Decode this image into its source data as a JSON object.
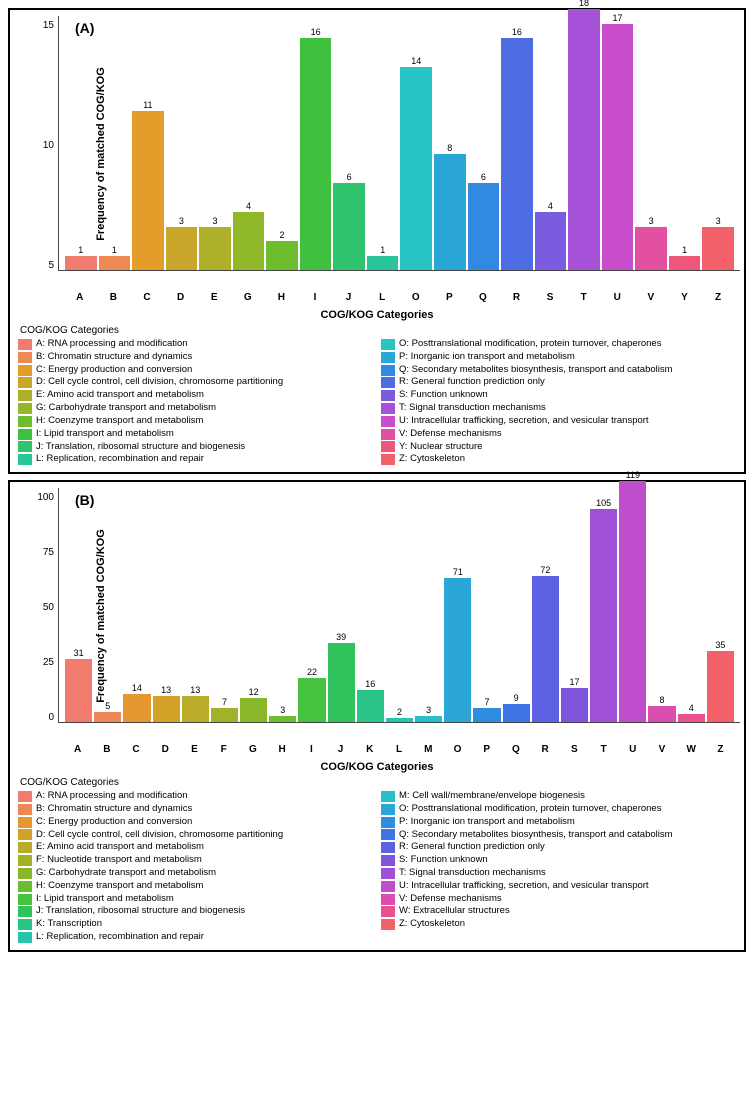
{
  "panelA": {
    "letter": "(A)",
    "type": "bar",
    "ylabel": "Frequency of matched COG/KOG",
    "xlabel": "COG/KOG Categories",
    "legend_title": "COG/KOG Categories",
    "ylim_max": 18,
    "yticks": [
      "15",
      "10",
      "5"
    ],
    "bar_width": 0.95,
    "background_color": "#ffffff",
    "label_fontsize": 11,
    "value_fontsize": 9,
    "categories": [
      "A",
      "B",
      "C",
      "D",
      "E",
      "G",
      "H",
      "I",
      "J",
      "L",
      "O",
      "P",
      "Q",
      "R",
      "S",
      "T",
      "U",
      "V",
      "Y",
      "Z"
    ],
    "values": [
      1,
      1,
      11,
      3,
      3,
      4,
      2,
      16,
      6,
      1,
      14,
      8,
      6,
      16,
      4,
      18,
      17,
      3,
      1,
      3
    ],
    "colors": [
      "#f07b6e",
      "#ed8952",
      "#e59d2a",
      "#c8a72a",
      "#aeb029",
      "#91b828",
      "#6fbd2f",
      "#3fc13f",
      "#2fc46b",
      "#2ac59a",
      "#28c4c3",
      "#2aa7d7",
      "#3189e2",
      "#4e6de5",
      "#7a5ce0",
      "#a552d8",
      "#ca4ecb",
      "#e2509f",
      "#ee567a",
      "#f2616a"
    ],
    "legend_left": [
      {
        "t": "A: RNA processing and modification",
        "c": "#f07b6e"
      },
      {
        "t": "B: Chromatin structure and dynamics",
        "c": "#ed8952"
      },
      {
        "t": "C: Energy production and conversion",
        "c": "#e59d2a"
      },
      {
        "t": "D: Cell cycle control, cell division, chromosome partitioning",
        "c": "#c8a72a"
      },
      {
        "t": "E: Amino acid transport and metabolism",
        "c": "#aeb029"
      },
      {
        "t": "G: Carbohydrate transport and metabolism",
        "c": "#91b828"
      },
      {
        "t": "H: Coenzyme transport and metabolism",
        "c": "#6fbd2f"
      },
      {
        "t": "I: Lipid transport and metabolism",
        "c": "#3fc13f"
      },
      {
        "t": "J: Translation, ribosomal structure and biogenesis",
        "c": "#2fc46b"
      },
      {
        "t": "L: Replication, recombination and repair",
        "c": "#2ac59a"
      }
    ],
    "legend_right": [
      {
        "t": "O: Posttranslational modification, protein turnover, chaperones",
        "c": "#28c4c3"
      },
      {
        "t": "P: Inorganic ion transport and metabolism",
        "c": "#2aa7d7"
      },
      {
        "t": "Q: Secondary metabolites biosynthesis, transport and catabolism",
        "c": "#3189e2"
      },
      {
        "t": "R: General function prediction only",
        "c": "#4e6de5"
      },
      {
        "t": "S: Function unknown",
        "c": "#7a5ce0"
      },
      {
        "t": "T: Signal transduction mechanisms",
        "c": "#a552d8"
      },
      {
        "t": "U: Intracellular trafficking, secretion, and vesicular transport",
        "c": "#ca4ecb"
      },
      {
        "t": "V: Defense mechanisms",
        "c": "#e2509f"
      },
      {
        "t": "Y: Nuclear structure",
        "c": "#ee567a"
      },
      {
        "t": "Z: Cytoskeleton",
        "c": "#f2616a"
      }
    ]
  },
  "panelB": {
    "letter": "(B)",
    "type": "bar",
    "ylabel": "Frequency of matched COG/KOG",
    "xlabel": "COG/KOG Categories",
    "legend_title": "COG/KOG Categories",
    "ylim_max": 119,
    "yticks": [
      "100",
      "75",
      "50",
      "25",
      "0"
    ],
    "bar_width": 0.95,
    "background_color": "#ffffff",
    "label_fontsize": 11,
    "value_fontsize": 9,
    "categories": [
      "A",
      "B",
      "C",
      "D",
      "E",
      "F",
      "G",
      "H",
      "I",
      "J",
      "K",
      "L",
      "M",
      "O",
      "P",
      "Q",
      "R",
      "S",
      "T",
      "U",
      "V",
      "W",
      "Z"
    ],
    "values": [
      31,
      5,
      14,
      13,
      13,
      7,
      12,
      3,
      22,
      39,
      16,
      2,
      3,
      71,
      7,
      9,
      72,
      17,
      105,
      119,
      8,
      4,
      35
    ],
    "colors": [
      "#f07b6e",
      "#ee8756",
      "#e7972f",
      "#d3a228",
      "#baab28",
      "#a2b228",
      "#88b829",
      "#6bbd2e",
      "#47c140",
      "#30c35d",
      "#2ac487",
      "#27c5ac",
      "#28bfcb",
      "#2aa7d7",
      "#2f8de1",
      "#3f74e5",
      "#5c62e3",
      "#7e56de",
      "#9f50d6",
      "#c04dcc",
      "#da4eb0",
      "#e9528f",
      "#f2616a"
    ],
    "legend_left": [
      {
        "t": "A: RNA processing and modification",
        "c": "#f07b6e"
      },
      {
        "t": "B: Chromatin structure and dynamics",
        "c": "#ee8756"
      },
      {
        "t": "C: Energy production and conversion",
        "c": "#e7972f"
      },
      {
        "t": "D: Cell cycle control, cell division, chromosome partitioning",
        "c": "#d3a228"
      },
      {
        "t": "E: Amino acid transport and metabolism",
        "c": "#baab28"
      },
      {
        "t": "F: Nucleotide transport and metabolism",
        "c": "#a2b228"
      },
      {
        "t": "G: Carbohydrate transport and metabolism",
        "c": "#88b829"
      },
      {
        "t": "H: Coenzyme transport and metabolism",
        "c": "#6bbd2e"
      },
      {
        "t": "I: Lipid transport and metabolism",
        "c": "#47c140"
      },
      {
        "t": "J: Translation, ribosomal structure and biogenesis",
        "c": "#30c35d"
      },
      {
        "t": "K: Transcription",
        "c": "#2ac487"
      },
      {
        "t": "L: Replication, recombination and repair",
        "c": "#27c5ac"
      }
    ],
    "legend_right": [
      {
        "t": "M: Cell wall/membrane/envelope biogenesis",
        "c": "#28bfcb"
      },
      {
        "t": "O: Posttranslational modification, protein turnover, chaperones",
        "c": "#2aa7d7"
      },
      {
        "t": "P: Inorganic ion transport and metabolism",
        "c": "#2f8de1"
      },
      {
        "t": "Q: Secondary metabolites biosynthesis, transport and catabolism",
        "c": "#3f74e5"
      },
      {
        "t": "R: General function prediction only",
        "c": "#5c62e3"
      },
      {
        "t": "S: Function unknown",
        "c": "#7e56de"
      },
      {
        "t": "T: Signal transduction mechanisms",
        "c": "#9f50d6"
      },
      {
        "t": "U: Intracellular trafficking, secretion, and vesicular transport",
        "c": "#c04dcc"
      },
      {
        "t": "V: Defense mechanisms",
        "c": "#da4eb0"
      },
      {
        "t": "W: Extracellular structures",
        "c": "#e9528f"
      },
      {
        "t": "Z: Cytoskeleton",
        "c": "#f2616a"
      }
    ]
  }
}
